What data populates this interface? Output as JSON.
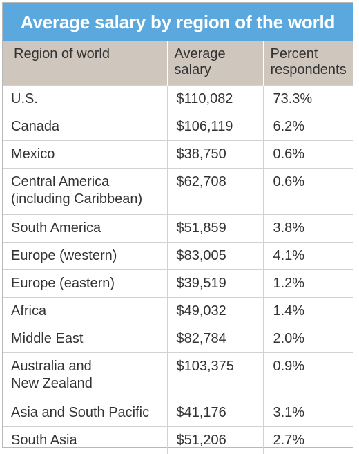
{
  "chart_data": {
    "type": "table",
    "title": "Average salary by region of the world",
    "columns": [
      "Region of world",
      "Average salary",
      "Percent respondents"
    ],
    "rows": [
      {
        "region": "U.S.",
        "salary": "$110,082",
        "percent": "73.3%",
        "salary_value": 110082,
        "percent_value": 73.3
      },
      {
        "region": "Canada",
        "salary": "$106,119",
        "percent": "6.2%",
        "salary_value": 106119,
        "percent_value": 6.2
      },
      {
        "region": "Mexico",
        "salary": "$38,750",
        "percent": "0.6%",
        "salary_value": 38750,
        "percent_value": 0.6
      },
      {
        "region": "Central America\n(including Caribbean)",
        "salary": "$62,708",
        "percent": "0.6%",
        "salary_value": 62708,
        "percent_value": 0.6
      },
      {
        "region": "South America",
        "salary": "$51,859",
        "percent": "3.8%",
        "salary_value": 51859,
        "percent_value": 3.8
      },
      {
        "region": "Europe (western)",
        "salary": "$83,005",
        "percent": "4.1%",
        "salary_value": 83005,
        "percent_value": 4.1
      },
      {
        "region": "Europe (eastern)",
        "salary": "$39,519",
        "percent": "1.2%",
        "salary_value": 39519,
        "percent_value": 1.2
      },
      {
        "region": "Africa",
        "salary": "$49,032",
        "percent": "1.4%",
        "salary_value": 49032,
        "percent_value": 1.4
      },
      {
        "region": "Middle East",
        "salary": "$82,784",
        "percent": "2.0%",
        "salary_value": 82784,
        "percent_value": 2.0
      },
      {
        "region": "Australia and\nNew Zealand",
        "salary": "$103,375",
        "percent": "0.9%",
        "salary_value": 103375,
        "percent_value": 0.9
      },
      {
        "region": "Asia and South Pacific",
        "salary": "$41,176",
        "percent": "3.1%",
        "salary_value": 41176,
        "percent_value": 3.1
      },
      {
        "region": "South Asia",
        "salary": "$51,206",
        "percent": "2.7%",
        "salary_value": 51206,
        "percent_value": 2.7
      }
    ],
    "colors": {
      "title_background": "#5aa8dd",
      "header_background": "#cfc6bd",
      "title_text": "#ffffff",
      "body_text": "#333333"
    }
  }
}
